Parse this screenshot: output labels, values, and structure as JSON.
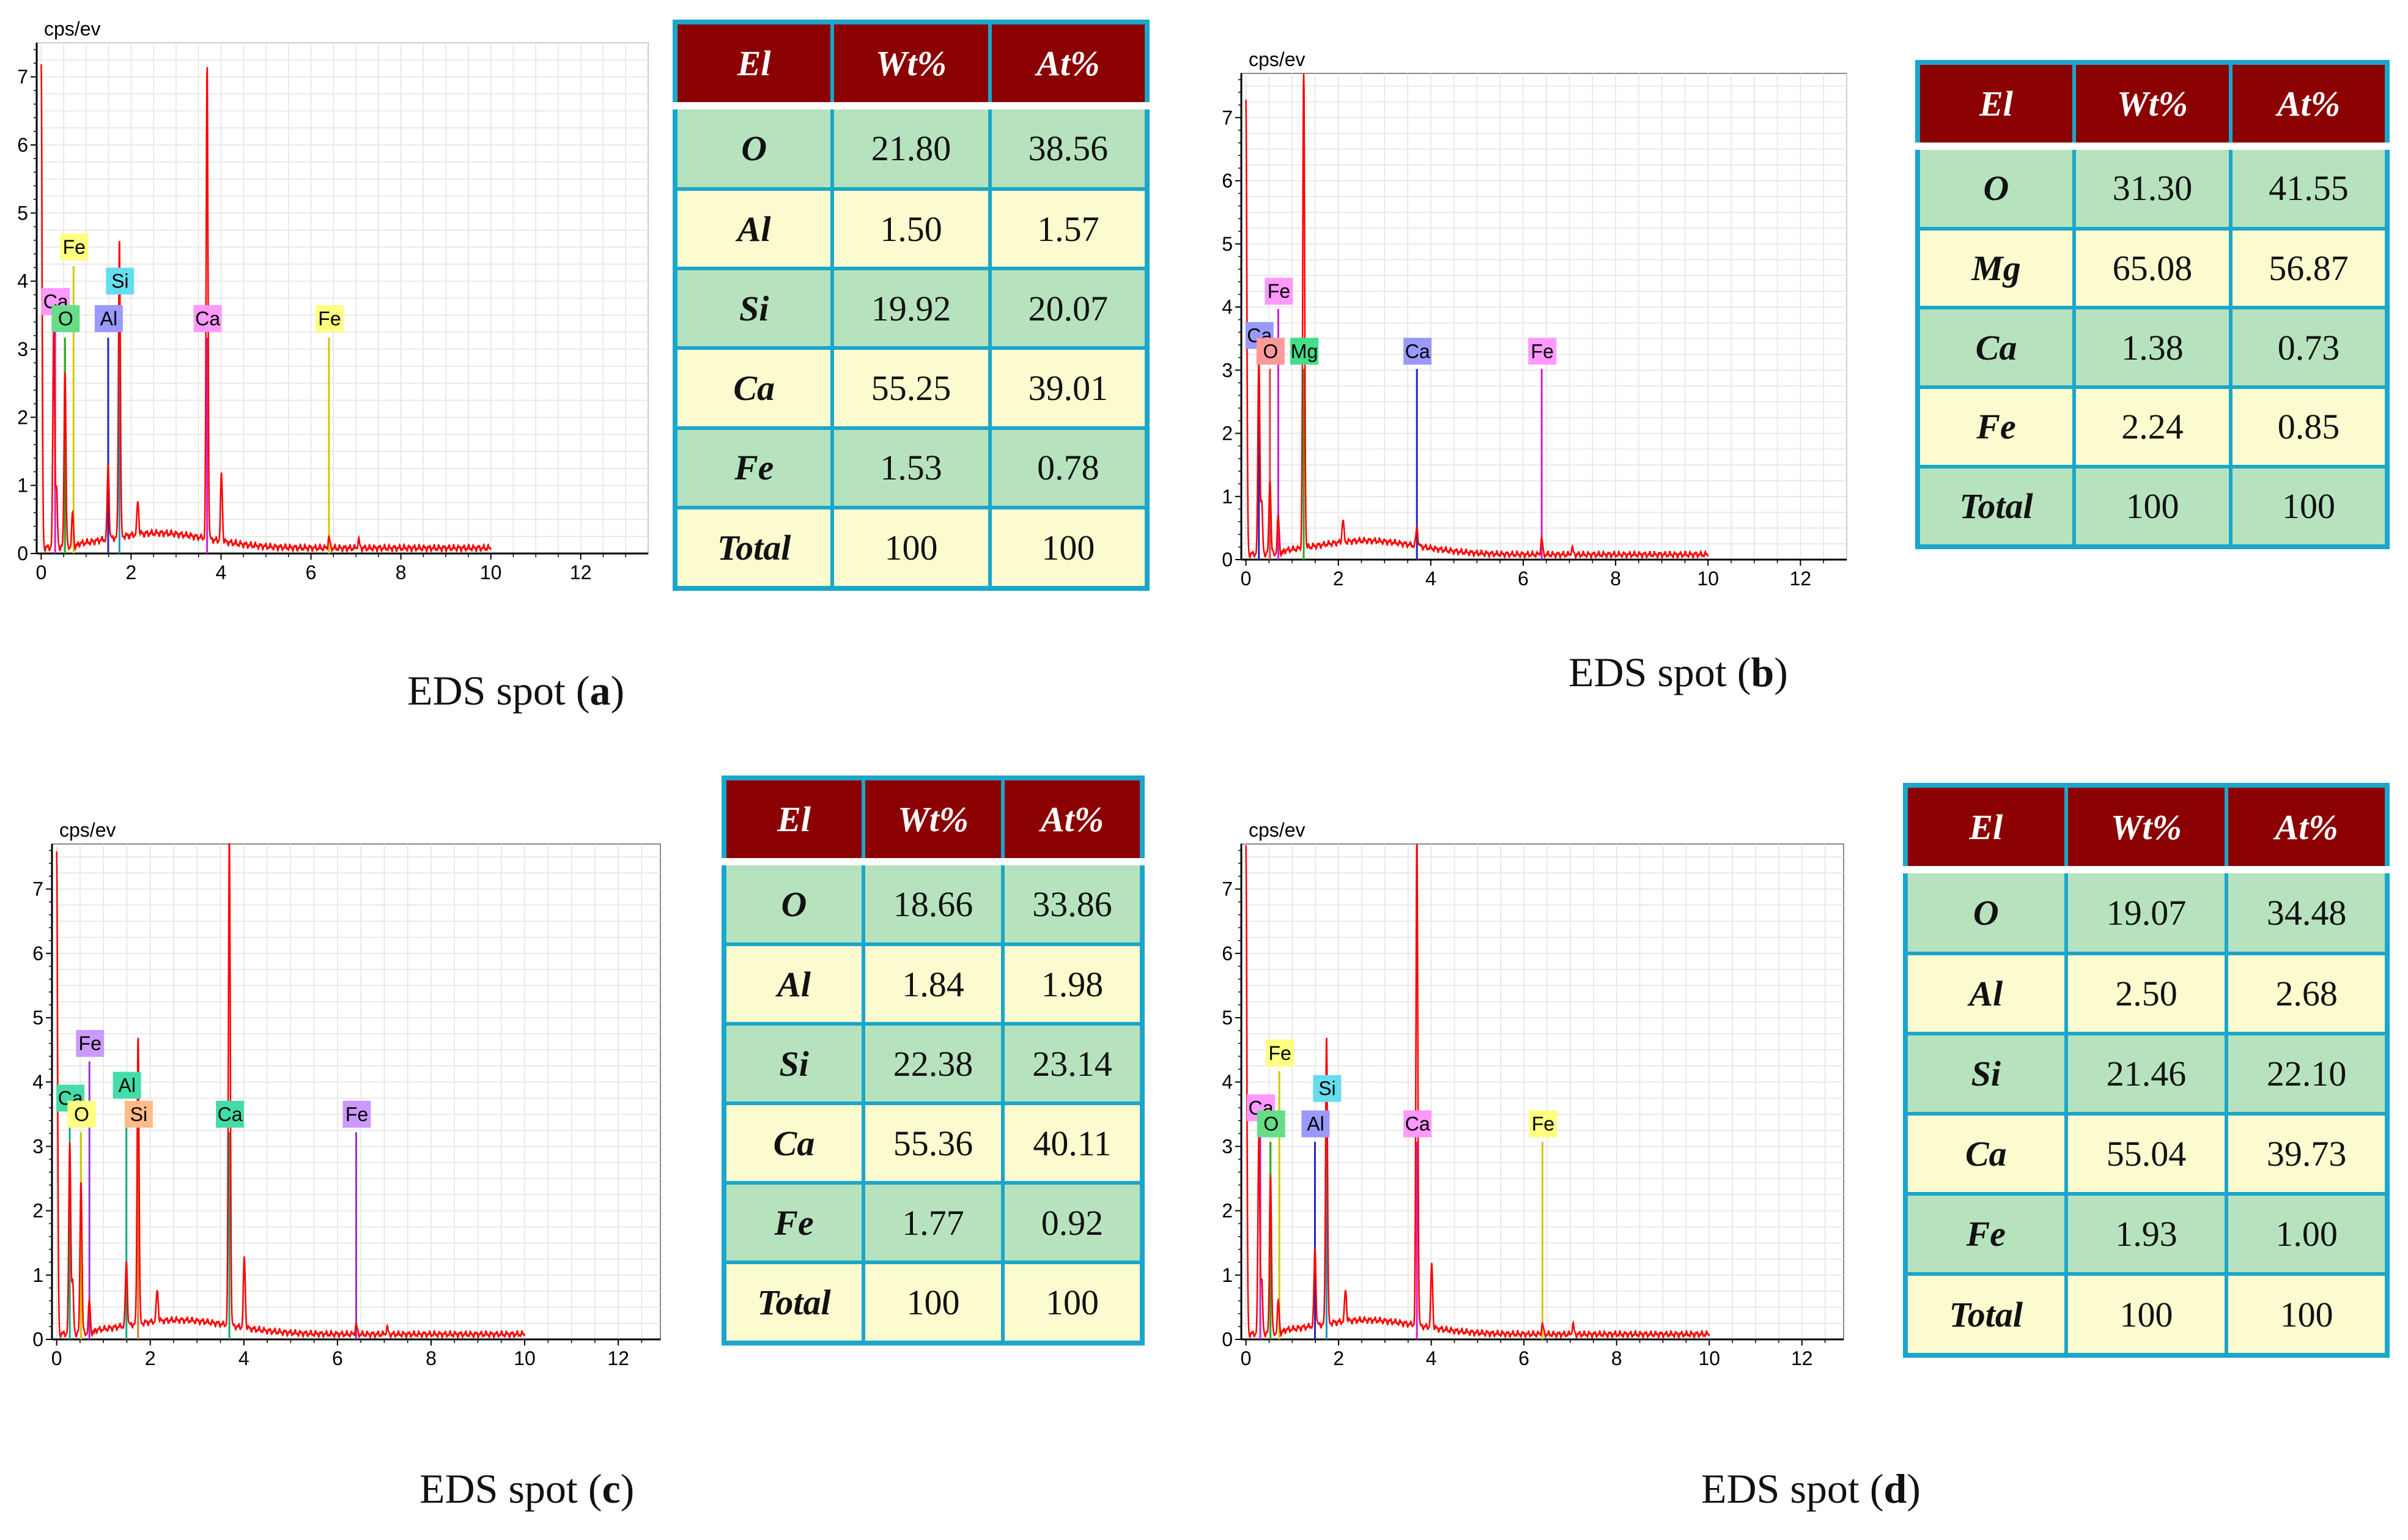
{
  "panels": [
    {
      "id": "a",
      "caption": {
        "prefix": "EDS spot (",
        "letter": "a",
        "suffix": ")"
      },
      "table": {
        "headers": [
          "El",
          "Wt%",
          "At%"
        ],
        "rows": [
          [
            "O",
            "21.80",
            "38.56"
          ],
          [
            "Al",
            "1.50",
            "1.57"
          ],
          [
            "Si",
            "19.92",
            "20.07"
          ],
          [
            "Ca",
            "55.25",
            "39.01"
          ],
          [
            "Fe",
            "1.53",
            "0.78"
          ],
          [
            "Total",
            "100",
            "100"
          ]
        ]
      }
    },
    {
      "id": "b",
      "caption": {
        "prefix": "EDS spot (",
        "letter": "b",
        "suffix": ")"
      },
      "table": {
        "headers": [
          "El",
          "Wt%",
          "At%"
        ],
        "rows": [
          [
            "O",
            "31.30",
            "41.55"
          ],
          [
            "Mg",
            "65.08",
            "56.87"
          ],
          [
            "Ca",
            "1.38",
            "0.73"
          ],
          [
            "Fe",
            "2.24",
            "0.85"
          ],
          [
            "Total",
            "100",
            "100"
          ]
        ]
      }
    },
    {
      "id": "c",
      "caption": {
        "prefix": "EDS spot (",
        "letter": "c",
        "suffix": ")"
      },
      "table": {
        "headers": [
          "El",
          "Wt%",
          "At%"
        ],
        "rows": [
          [
            "O",
            "18.66",
            "33.86"
          ],
          [
            "Al",
            "1.84",
            "1.98"
          ],
          [
            "Si",
            "22.38",
            "23.14"
          ],
          [
            "Ca",
            "55.36",
            "40.11"
          ],
          [
            "Fe",
            "1.77",
            "0.92"
          ],
          [
            "Total",
            "100",
            "100"
          ]
        ]
      }
    },
    {
      "id": "d",
      "caption": {
        "prefix": "EDS spot (",
        "letter": "d",
        "suffix": ")"
      },
      "table": {
        "headers": [
          "El",
          "Wt%",
          "At%"
        ],
        "rows": [
          [
            "O",
            "19.07",
            "34.48"
          ],
          [
            "Al",
            "2.50",
            "2.68"
          ],
          [
            "Si",
            "21.46",
            "22.10"
          ],
          [
            "Ca",
            "55.04",
            "39.73"
          ],
          [
            "Fe",
            "1.93",
            "1.00"
          ],
          [
            "Total",
            "100",
            "100"
          ]
        ]
      }
    }
  ],
  "colors": {
    "header_bg": "#8b0000",
    "row_green": "#b6e3bd",
    "row_yellow": "#fbfbcf",
    "border": "#1ba6cb",
    "spectrum": "#ff0000"
  },
  "chart_data": [
    {
      "type": "line",
      "panel": "a",
      "ylabel": "cps/ev",
      "xlabel": "",
      "xlim": [
        -0.1,
        13.5
      ],
      "ylim": [
        0,
        7.5
      ],
      "xticks": [
        "0",
        "2",
        "4",
        "6",
        "8",
        "10",
        "12"
      ],
      "yticks": [
        "0",
        "1",
        "2",
        "3",
        "4",
        "5",
        "6",
        "7"
      ],
      "background_end": 10,
      "peaks": [
        [
          0.0,
          7.1
        ],
        [
          0.28,
          3.3
        ],
        [
          0.34,
          0.85
        ],
        [
          0.53,
          2.6
        ],
        [
          0.7,
          0.5
        ],
        [
          1.49,
          1.1
        ],
        [
          1.74,
          4.4
        ],
        [
          2.15,
          0.5
        ],
        [
          3.69,
          7.0
        ],
        [
          4.01,
          1.0
        ],
        [
          6.4,
          0.15
        ],
        [
          7.06,
          0.12
        ]
      ],
      "labels": [
        {
          "text": "Fe",
          "color": "#ffff80",
          "x": 0.72,
          "y": 4.5,
          "line_color": "#d4c800"
        },
        {
          "text": "Ca",
          "color": "#ff99ff",
          "x": 0.31,
          "y": 3.7,
          "line_color": "#d020d0"
        },
        {
          "text": "O",
          "color": "#66dd88",
          "x": 0.53,
          "y": 3.45,
          "line_color": "#22aa22"
        },
        {
          "text": "Al",
          "color": "#9999ff",
          "x": 1.49,
          "y": 3.45,
          "line_color": "#2222cc"
        },
        {
          "text": "Si",
          "color": "#66ddee",
          "x": 1.74,
          "y": 4.0,
          "line_color": "#1199bb"
        },
        {
          "text": "Ca",
          "color": "#ff99ff",
          "x": 3.69,
          "y": 3.45,
          "line_color": "#d020d0"
        },
        {
          "text": "Fe",
          "color": "#ffff80",
          "x": 6.4,
          "y": 3.45,
          "line_color": "#d4c800"
        }
      ]
    },
    {
      "type": "line",
      "panel": "b",
      "ylabel": "cps/ev",
      "xlabel": "",
      "xlim": [
        -0.1,
        13.0
      ],
      "ylim": [
        0,
        7.7
      ],
      "xticks": [
        "0",
        "2",
        "4",
        "6",
        "8",
        "10",
        "12"
      ],
      "yticks": [
        "0",
        "1",
        "2",
        "3",
        "4",
        "5",
        "6",
        "7"
      ],
      "background_end": 10,
      "peaks": [
        [
          0.0,
          7.2
        ],
        [
          0.28,
          3.2
        ],
        [
          0.34,
          0.8
        ],
        [
          0.52,
          1.2
        ],
        [
          0.7,
          0.6
        ],
        [
          1.25,
          7.7
        ],
        [
          2.1,
          0.35
        ],
        [
          3.7,
          0.3
        ],
        [
          6.4,
          0.25
        ],
        [
          7.06,
          0.1
        ]
      ],
      "labels": [
        {
          "text": "Fe",
          "color": "#ff99ff",
          "x": 0.7,
          "y": 4.25,
          "line_color": "#d020d0"
        },
        {
          "text": "Ca",
          "color": "#9999ff",
          "x": 0.28,
          "y": 3.55,
          "line_color": "#2222cc"
        },
        {
          "text": "O",
          "color": "#ff9999",
          "x": 0.52,
          "y": 3.3,
          "line_color": "#dd4444"
        },
        {
          "text": "Mg",
          "color": "#44dd88",
          "x": 1.25,
          "y": 3.3,
          "line_color": "#22aa22"
        },
        {
          "text": "Ca",
          "color": "#9999ff",
          "x": 3.7,
          "y": 3.3,
          "line_color": "#2222cc"
        },
        {
          "text": "Fe",
          "color": "#ff99ff",
          "x": 6.4,
          "y": 3.3,
          "line_color": "#d020d0"
        }
      ]
    },
    {
      "type": "line",
      "panel": "c",
      "ylabel": "cps/ev",
      "xlabel": "",
      "xlim": [
        -0.1,
        12.9
      ],
      "ylim": [
        0,
        7.7
      ],
      "xticks": [
        "0",
        "2",
        "4",
        "6",
        "8",
        "10",
        "12"
      ],
      "yticks": [
        "0",
        "1",
        "2",
        "3",
        "4",
        "5",
        "6",
        "7"
      ],
      "background_end": 10,
      "peaks": [
        [
          0.0,
          7.5
        ],
        [
          0.28,
          3.0
        ],
        [
          0.34,
          0.8
        ],
        [
          0.52,
          2.4
        ],
        [
          0.7,
          0.5
        ],
        [
          1.49,
          1.0
        ],
        [
          1.74,
          4.5
        ],
        [
          2.15,
          0.5
        ],
        [
          3.69,
          7.7
        ],
        [
          4.01,
          1.1
        ],
        [
          6.4,
          0.15
        ],
        [
          7.06,
          0.1
        ]
      ],
      "labels": [
        {
          "text": "Fe",
          "color": "#cc99ff",
          "x": 0.7,
          "y": 4.6,
          "line_color": "#9933cc"
        },
        {
          "text": "Ca",
          "color": "#44ddaa",
          "x": 0.28,
          "y": 3.75,
          "line_color": "#11aa77"
        },
        {
          "text": "O",
          "color": "#ffff80",
          "x": 0.52,
          "y": 3.5,
          "line_color": "#d4c800"
        },
        {
          "text": "Al",
          "color": "#44ddaa",
          "x": 1.49,
          "y": 3.95,
          "line_color": "#11aa77"
        },
        {
          "text": "Si",
          "color": "#ffbb88",
          "x": 1.74,
          "y": 3.5,
          "line_color": "#dd7722"
        },
        {
          "text": "Ca",
          "color": "#44ddaa",
          "x": 3.69,
          "y": 3.5,
          "line_color": "#11aa77"
        },
        {
          "text": "Fe",
          "color": "#cc99ff",
          "x": 6.4,
          "y": 3.5,
          "line_color": "#9933cc"
        }
      ]
    },
    {
      "type": "line",
      "panel": "d",
      "ylabel": "cps/ev",
      "xlabel": "",
      "xlim": [
        -0.1,
        12.9
      ],
      "ylim": [
        0,
        7.7
      ],
      "xticks": [
        "0",
        "2",
        "4",
        "6",
        "8",
        "10",
        "12"
      ],
      "yticks": [
        "0",
        "1",
        "2",
        "3",
        "4",
        "5",
        "6",
        "7"
      ],
      "background_end": 10,
      "peaks": [
        [
          0.0,
          7.6
        ],
        [
          0.28,
          3.1
        ],
        [
          0.34,
          0.8
        ],
        [
          0.53,
          2.5
        ],
        [
          0.7,
          0.5
        ],
        [
          1.49,
          1.2
        ],
        [
          1.74,
          4.5
        ],
        [
          2.15,
          0.5
        ],
        [
          3.69,
          7.6
        ],
        [
          4.01,
          1.0
        ],
        [
          6.4,
          0.15
        ],
        [
          7.06,
          0.15
        ]
      ],
      "labels": [
        {
          "text": "Fe",
          "color": "#ffff80",
          "x": 0.72,
          "y": 4.45,
          "line_color": "#d4c800"
        },
        {
          "text": "Ca",
          "color": "#ff99ff",
          "x": 0.31,
          "y": 3.6,
          "line_color": "#d020d0"
        },
        {
          "text": "O",
          "color": "#66dd88",
          "x": 0.53,
          "y": 3.35,
          "line_color": "#22aa22"
        },
        {
          "text": "Al",
          "color": "#9999ff",
          "x": 1.49,
          "y": 3.35,
          "line_color": "#2222cc"
        },
        {
          "text": "Si",
          "color": "#66ddee",
          "x": 1.74,
          "y": 3.9,
          "line_color": "#1199bb"
        },
        {
          "text": "Ca",
          "color": "#ff99ff",
          "x": 3.69,
          "y": 3.35,
          "line_color": "#d020d0"
        },
        {
          "text": "Fe",
          "color": "#ffff80",
          "x": 6.4,
          "y": 3.35,
          "line_color": "#d4c800"
        }
      ]
    }
  ]
}
